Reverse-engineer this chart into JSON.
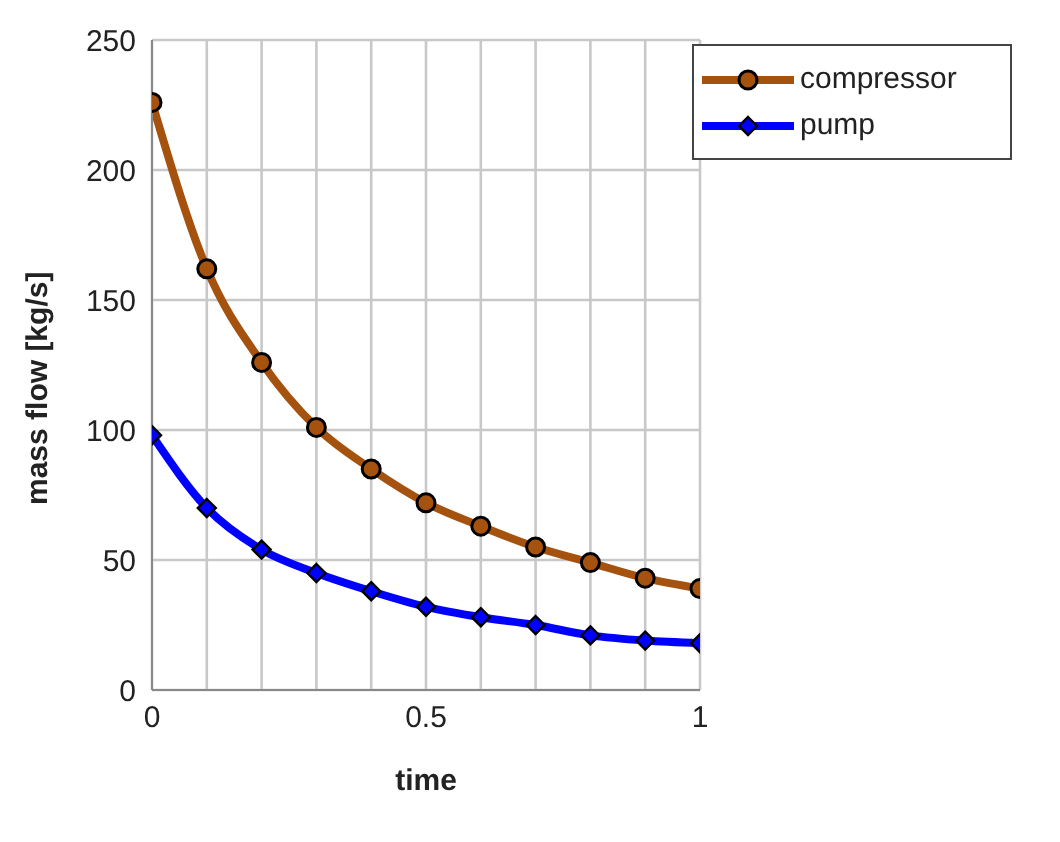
{
  "chart_data": {
    "type": "line",
    "xlabel": "time",
    "ylabel": "mass flow [kg/s]",
    "x": [
      0,
      0.1,
      0.2,
      0.3,
      0.4,
      0.5,
      0.6,
      0.7,
      0.8,
      0.9,
      1
    ],
    "series": [
      {
        "name": "compressor",
        "color": "#a5520f",
        "marker": "circle",
        "values": [
          226,
          162,
          126,
          101,
          85,
          72,
          63,
          55,
          49,
          43,
          39
        ]
      },
      {
        "name": "pump",
        "color": "#0000ff",
        "marker": "diamond",
        "values": [
          98,
          70,
          54,
          45,
          38,
          32,
          28,
          25,
          21,
          19,
          18
        ]
      }
    ],
    "xlim": [
      0,
      1
    ],
    "xticks": [
      0,
      {
        "value": 0.1,
        "label": null
      },
      {
        "value": 0.2,
        "label": null
      },
      {
        "value": 0.3,
        "label": null
      },
      {
        "value": 0.4,
        "label": null
      },
      0.5,
      {
        "value": 0.6,
        "label": null
      },
      {
        "value": 0.7,
        "label": null
      },
      {
        "value": 0.8,
        "label": null
      },
      {
        "value": 0.9,
        "label": null
      },
      1
    ],
    "ylim": [
      0,
      250
    ],
    "yticks": [
      0,
      50,
      100,
      150,
      200,
      250
    ],
    "grid": true,
    "legend": "top right",
    "line_style": "solid"
  }
}
